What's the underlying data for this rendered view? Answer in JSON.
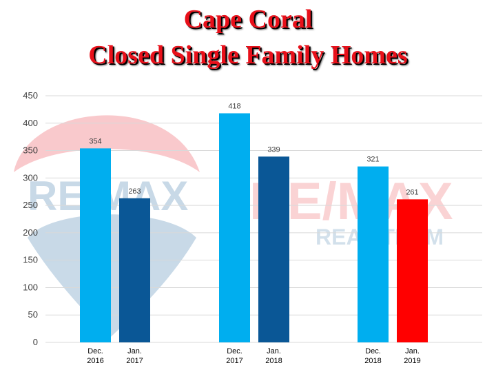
{
  "title_lines": [
    "Cape Coral",
    "Closed Single Family Homes"
  ],
  "watermark": {
    "logo_text_1": "RE/MAX",
    "logo_text_2": "REAL TEAM"
  },
  "colors": {
    "light_blue": "#00aeef",
    "dark_blue": "#0a5796",
    "red": "#ff0000",
    "title_red": "#e8101a",
    "grid": "#d9d9d9"
  },
  "chart_data": {
    "type": "bar",
    "title": "Cape Coral Closed Single Family Homes",
    "ylim": [
      0,
      450
    ],
    "yticks": [
      0,
      50,
      100,
      150,
      200,
      250,
      300,
      350,
      400,
      450
    ],
    "grid": true,
    "bars": [
      {
        "label_line1": "Dec.",
        "label_line2": "2016",
        "value": 354,
        "color": "#00aeef"
      },
      {
        "label_line1": "Jan.",
        "label_line2": "2017",
        "value": 263,
        "color": "#0a5796"
      },
      {
        "label_line1": "Dec.",
        "label_line2": "2017",
        "value": 418,
        "color": "#00aeef"
      },
      {
        "label_line1": "Jan.",
        "label_line2": "2018",
        "value": 339,
        "color": "#0a5796"
      },
      {
        "label_line1": "Dec.",
        "label_line2": "2018",
        "value": 321,
        "color": "#00aeef"
      },
      {
        "label_line1": "Jan.",
        "label_line2": "2019",
        "value": 261,
        "color": "#ff0000"
      }
    ]
  }
}
